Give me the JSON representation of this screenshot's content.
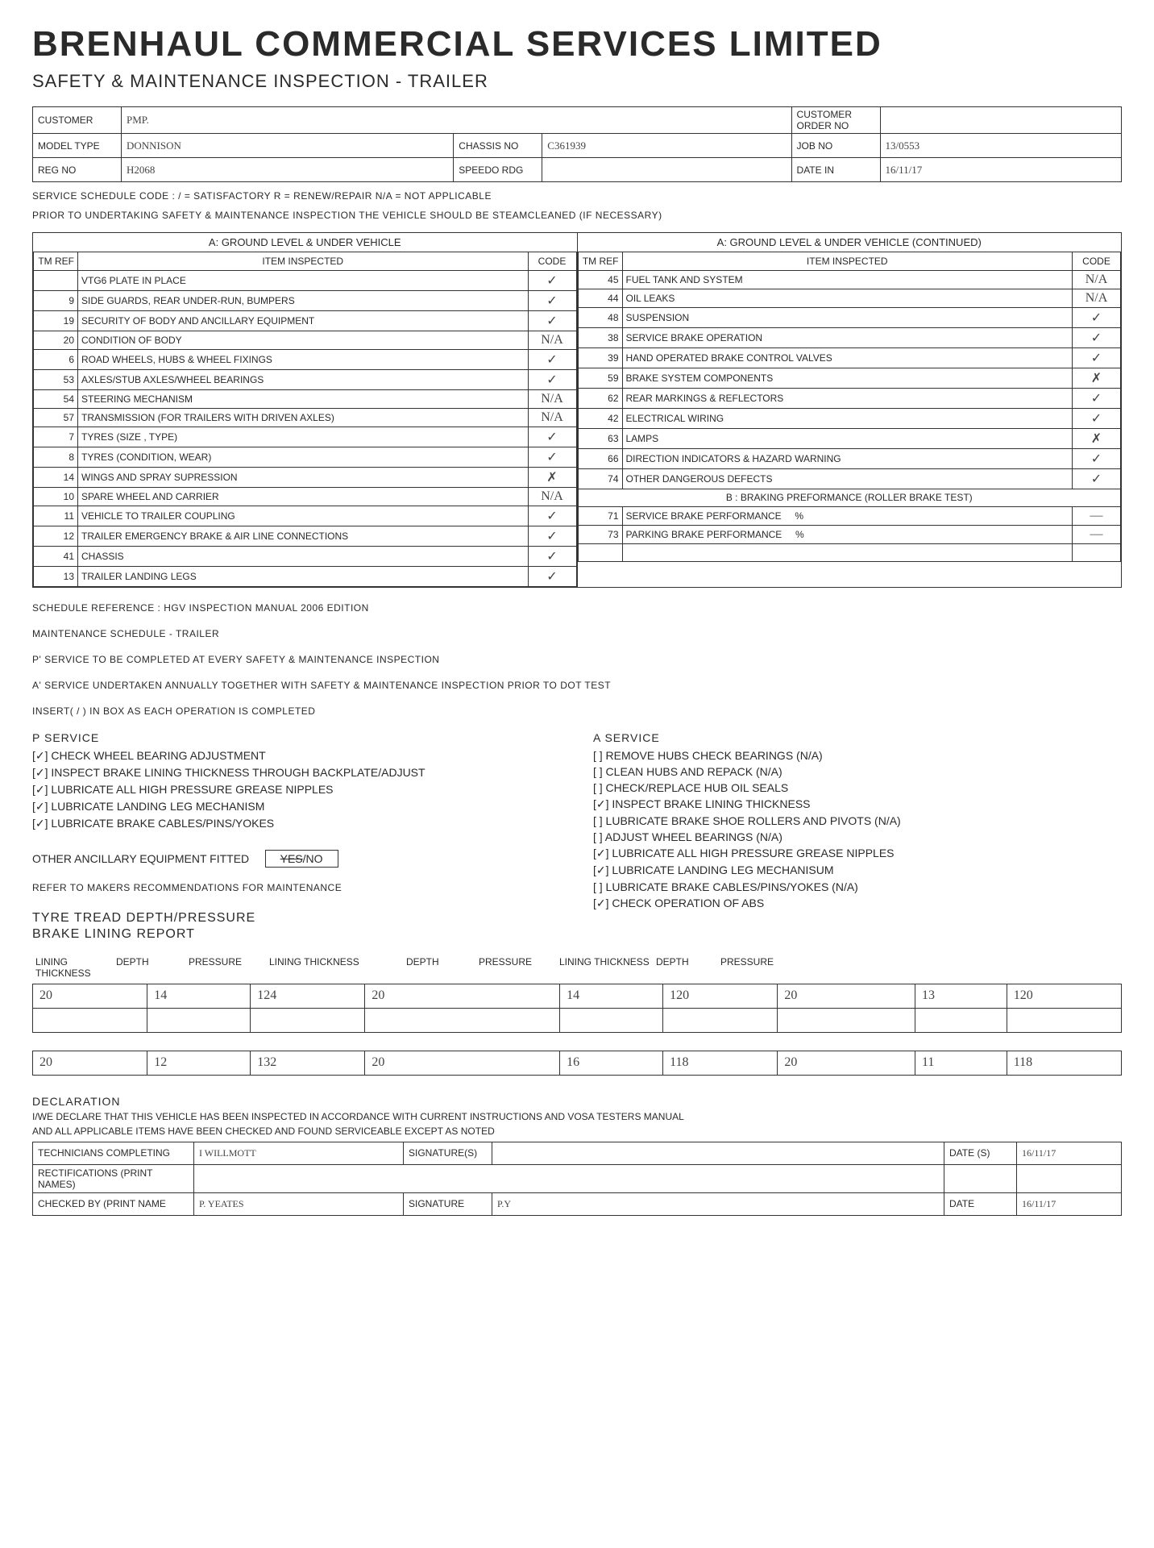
{
  "company": "BRENHAUL COMMERCIAL SERVICES LIMITED",
  "form_title": "SAFETY & MAINTENANCE INSPECTION - TRAILER",
  "hdr": {
    "customer_lab": "CUSTOMER",
    "customer_val": "PMP.",
    "order_lab": "CUSTOMER ORDER NO",
    "order_val": "",
    "model_lab": "MODEL TYPE",
    "model_val": "DONNISON",
    "chassis_lab": "CHASSIS NO",
    "chassis_val": "C361939",
    "job_lab": "JOB NO",
    "job_val": "13/0553",
    "reg_lab": "REG NO",
    "reg_val": "H2068",
    "speedo_lab": "SPEEDO RDG",
    "speedo_val": "",
    "date_lab": "DATE IN",
    "date_val": "16/11/17"
  },
  "codes_note": "SERVICE SCHEDULE CODE :  / = SATISFACTORY   R = RENEW/REPAIR   N/A = NOT APPLICABLE",
  "prior_note": "PRIOR TO UNDERTAKING SAFETY & MAINTENANCE INSPECTION THE VEHICLE SHOULD BE STEAMCLEANED (IF NECESSARY)",
  "sectionA": "A: GROUND LEVEL & UNDER VEHICLE",
  "sectionAcont": "A: GROUND LEVEL & UNDER VEHICLE (CONTINUED)",
  "col": {
    "tm": "TM REF",
    "item": "ITEM INSPECTED",
    "code": "CODE"
  },
  "left": [
    {
      "t": "",
      "i": "VTG6 PLATE IN PLACE",
      "c": "✓"
    },
    {
      "t": "9",
      "i": "SIDE GUARDS, REAR UNDER-RUN, BUMPERS",
      "c": "✓"
    },
    {
      "t": "19",
      "i": "SECURITY OF BODY AND ANCILLARY EQUIPMENT",
      "c": "✓"
    },
    {
      "t": "20",
      "i": "CONDITION OF BODY",
      "c": "N/A"
    },
    {
      "t": "6",
      "i": "ROAD WHEELS, HUBS & WHEEL FIXINGS",
      "c": "✓"
    },
    {
      "t": "53",
      "i": "AXLES/STUB AXLES/WHEEL BEARINGS",
      "c": "✓"
    },
    {
      "t": "54",
      "i": "STEERING MECHANISM",
      "c": "N/A"
    },
    {
      "t": "57",
      "i": "TRANSMISSION (FOR TRAILERS WITH DRIVEN AXLES)",
      "c": "N/A"
    },
    {
      "t": "7",
      "i": "TYRES (SIZE , TYPE)",
      "c": "✓"
    },
    {
      "t": "8",
      "i": "TYRES (CONDITION, WEAR)",
      "c": "✓"
    },
    {
      "t": "14",
      "i": "WINGS AND SPRAY SUPRESSION",
      "c": "✗"
    },
    {
      "t": "10",
      "i": "SPARE WHEEL AND CARRIER",
      "c": "N/A"
    },
    {
      "t": "11",
      "i": "VEHICLE TO TRAILER COUPLING",
      "c": "✓"
    },
    {
      "t": "12",
      "i": "TRAILER EMERGENCY BRAKE & AIR LINE CONNECTIONS",
      "c": "✓"
    },
    {
      "t": "41",
      "i": "CHASSIS",
      "c": "✓"
    },
    {
      "t": "13",
      "i": "TRAILER LANDING LEGS",
      "c": "✓"
    }
  ],
  "right": [
    {
      "t": "45",
      "i": "FUEL TANK AND SYSTEM",
      "c": "N/A"
    },
    {
      "t": "44",
      "i": "OIL LEAKS",
      "c": "N/A"
    },
    {
      "t": "48",
      "i": "SUSPENSION",
      "c": "✓"
    },
    {
      "t": "38",
      "i": "SERVICE BRAKE OPERATION",
      "c": "✓"
    },
    {
      "t": "39",
      "i": "HAND OPERATED BRAKE CONTROL VALVES",
      "c": "✓"
    },
    {
      "t": "59",
      "i": "BRAKE SYSTEM COMPONENTS",
      "c": "✗"
    },
    {
      "t": "62",
      "i": "REAR MARKINGS & REFLECTORS",
      "c": "✓"
    },
    {
      "t": "42",
      "i": "ELECTRICAL WIRING",
      "c": "✓"
    },
    {
      "t": "63",
      "i": "LAMPS",
      "c": "✗"
    },
    {
      "t": "66",
      "i": "DIRECTION INDICATORS & HAZARD WARNING",
      "c": "✓"
    },
    {
      "t": "74",
      "i": "OTHER DANGEROUS DEFECTS",
      "c": "✓"
    }
  ],
  "brake_section": "B : BRAKING PREFORMANCE (ROLLER BRAKE TEST)",
  "brake": [
    {
      "t": "71",
      "i": "SERVICE BRAKE PERFORMANCE",
      "p": "%",
      "c": "—"
    },
    {
      "t": "73",
      "i": "PARKING BRAKE PERFORMANCE",
      "p": "%",
      "c": "—"
    }
  ],
  "sched_ref": "SCHEDULE REFERENCE : HGV INSPECTION MANUAL 2006 EDITION",
  "maint_title": "MAINTENANCE SCHEDULE - TRAILER",
  "p_note": "P' SERVICE TO BE COMPLETED AT EVERY SAFETY & MAINTENANCE INSPECTION",
  "a_note": "A' SERVICE UNDERTAKEN ANNUALLY TOGETHER WITH SAFETY & MAINTENANCE INSPECTION PRIOR TO DOT TEST",
  "insert_note": "INSERT( / ) IN BOX AS EACH OPERATION IS COMPLETED",
  "p_service": {
    "title": "P SERVICE",
    "items": [
      "[✓] CHECK WHEEL BEARING ADJUSTMENT",
      "[✓] INSPECT BRAKE LINING THICKNESS THROUGH BACKPLATE/ADJUST",
      "[✓] LUBRICATE ALL HIGH PRESSURE GREASE NIPPLES",
      "[✓] LUBRICATE LANDING LEG MECHANISM",
      "[✓] LUBRICATE BRAKE CABLES/PINS/YOKES"
    ]
  },
  "a_service": {
    "title": "A SERVICE",
    "items": [
      "[ ] REMOVE HUBS CHECK BEARINGS (N/A)",
      "[ ] CLEAN HUBS AND REPACK (N/A)",
      "[ ] CHECK/REPLACE HUB OIL SEALS",
      "[✓] INSPECT BRAKE LINING THICKNESS",
      "[ ] LUBRICATE BRAKE SHOE ROLLERS AND PIVOTS (N/A)",
      "[ ] ADJUST WHEEL BEARINGS (N/A)",
      "[✓] LUBRICATE ALL HIGH PRESSURE GREASE NIPPLES",
      "[✓] LUBRICATE LANDING LEG MECHANISUM",
      "[ ] LUBRICATE BRAKE CABLES/PINS/YOKES (N/A)",
      "[✓] CHECK OPERATION OF ABS"
    ]
  },
  "ancillary": {
    "label": "OTHER ANCILLARY EQUIPMENT FITTED",
    "box": "YES / NO",
    "note": "REFER TO MAKERS RECOMMENDATIONS FOR MAINTENANCE"
  },
  "tyre_title": "TYRE TREAD DEPTH/PRESSURE",
  "brake_title": "BRAKE LINING REPORT",
  "tyre_hdr": [
    "LINING THICKNESS",
    "DEPTH",
    "PRESSURE",
    "LINING THICKNESS",
    "DEPTH",
    "PRESSURE",
    "LINING THICKNESS",
    "DEPTH",
    "PRESSURE"
  ],
  "tyre_rows": [
    [
      "20",
      "14",
      "124",
      "20",
      "14",
      "120",
      "20",
      "13",
      "120"
    ],
    [
      "",
      "",
      "",
      "",
      "",
      "",
      "",
      "",
      ""
    ],
    [
      "20",
      "12",
      "132",
      "20",
      "16",
      "118",
      "20",
      "11",
      "118"
    ]
  ],
  "declaration": {
    "title": "DECLARATION",
    "line1": "I/WE DECLARE THAT THIS VEHICLE HAS BEEN INSPECTED IN ACCORDANCE WITH CURRENT INSTRUCTIONS AND VOSA TESTERS MANUAL",
    "line2": "AND ALL APPLICABLE ITEMS HAVE BEEN CHECKED AND FOUND SERVICEABLE EXCEPT AS NOTED"
  },
  "sig": {
    "tech_lab": "TECHNICIANS COMPLETING",
    "tech_val": "I WILLMOTT",
    "sig_lab": "SIGNATURE(S)",
    "date_lab": "DATE (S)",
    "date_val": "16/11/17",
    "rect_lab": "RECTIFICATIONS (PRINT NAMES)",
    "rect_val": "",
    "check_lab": "CHECKED BY (PRINT NAME",
    "check_val": "P. YEATES",
    "sig2_lab": "SIGNATURE",
    "sig2_val": "P.Y",
    "date2_lab": "DATE",
    "date2_val": "16/11/17"
  }
}
